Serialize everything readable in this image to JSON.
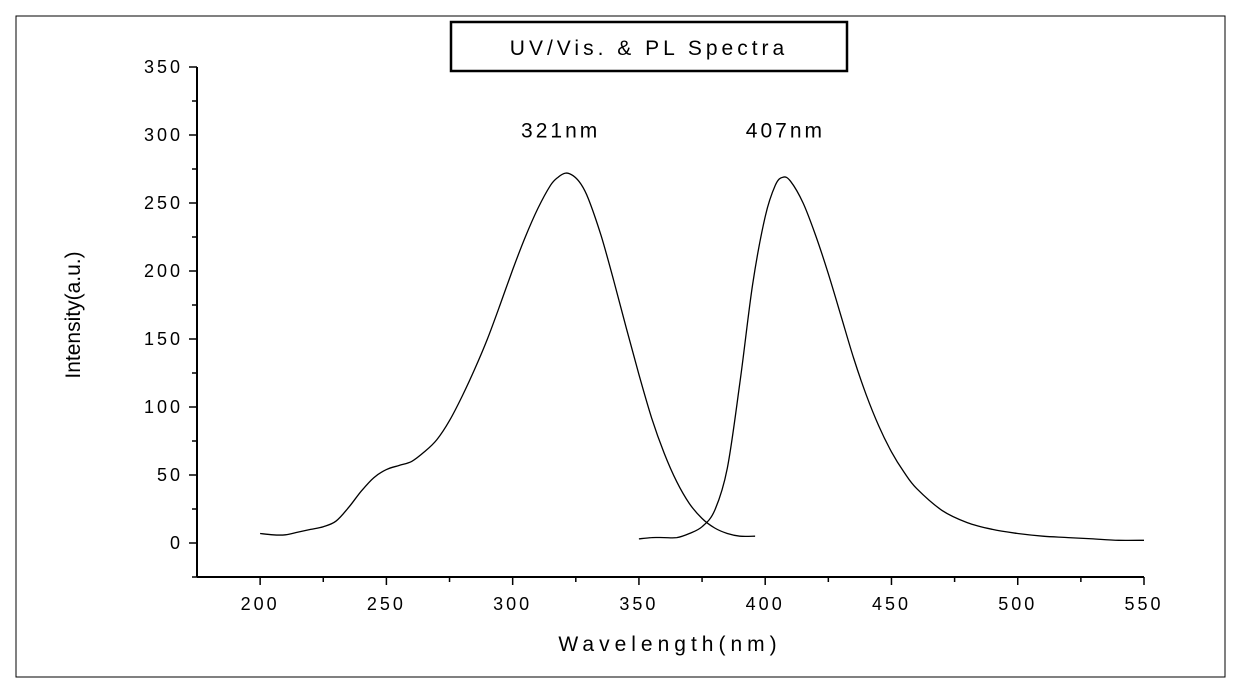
{
  "chart_data": {
    "type": "line",
    "title": "UV/Vis. & PL Spectra",
    "xlabel": "Wavelength(nm)",
    "ylabel": "Intensity(a.u.)",
    "xlim": [
      175,
      550
    ],
    "ylim": [
      -25,
      350
    ],
    "xticks": [
      200,
      250,
      300,
      350,
      400,
      450,
      500,
      550
    ],
    "yticks": [
      0,
      50,
      100,
      150,
      200,
      250,
      300,
      350
    ],
    "grid": false,
    "annotations": [
      {
        "text": "321nm",
        "x": 319,
        "y": 298
      },
      {
        "text": "407nm",
        "x": 408,
        "y": 298
      }
    ],
    "series": [
      {
        "x": [
          200,
          205,
          210,
          215,
          220,
          225,
          230,
          235,
          240,
          245,
          250,
          255,
          260,
          265,
          270,
          275,
          280,
          285,
          290,
          295,
          300,
          305,
          310,
          315,
          318,
          321,
          324,
          327,
          330,
          335,
          340,
          345,
          350,
          355,
          360,
          365,
          370,
          375,
          380,
          385,
          390,
          396
        ],
        "values": [
          7,
          6,
          6,
          8,
          10,
          12,
          16,
          26,
          38,
          48,
          54,
          57,
          60,
          67,
          76,
          90,
          108,
          128,
          150,
          175,
          201,
          225,
          246,
          263,
          269,
          272,
          270,
          264,
          253,
          226,
          193,
          158,
          124,
          92,
          66,
          45,
          29,
          18,
          11,
          7,
          5,
          5
        ]
      },
      {
        "x": [
          350,
          355,
          360,
          365,
          370,
          375,
          380,
          385,
          390,
          395,
          400,
          404,
          407,
          410,
          415,
          420,
          425,
          430,
          435,
          440,
          445,
          450,
          455,
          460,
          470,
          480,
          490,
          500,
          510,
          520,
          530,
          540,
          550
        ],
        "values": [
          3,
          4,
          4,
          4,
          7,
          12,
          24,
          55,
          118,
          190,
          240,
          263,
          269,
          266,
          250,
          226,
          198,
          167,
          136,
          109,
          86,
          67,
          52,
          40,
          24,
          15,
          10,
          7,
          5,
          4,
          3,
          2,
          2
        ]
      }
    ]
  }
}
